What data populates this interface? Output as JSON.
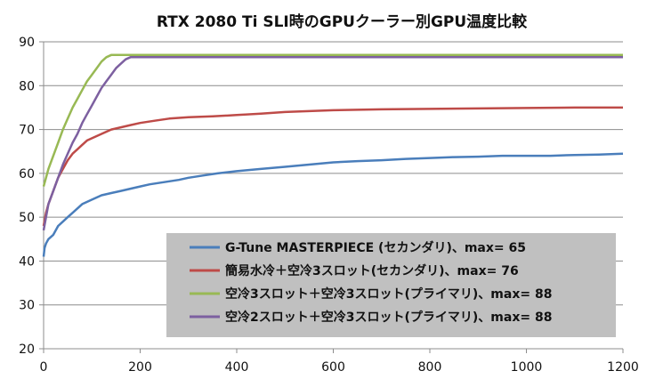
{
  "chart_data": {
    "type": "line",
    "title": "RTX 2080 Ti SLI時のGPUクーラー別GPU温度比較",
    "xlabel": "",
    "ylabel": "",
    "xlim": [
      0,
      1200
    ],
    "ylim": [
      20,
      90
    ],
    "x_ticks": [
      "0",
      "200",
      "400",
      "600",
      "800",
      "1000",
      "1200"
    ],
    "y_ticks": [
      "20",
      "30",
      "40",
      "50",
      "60",
      "70",
      "80",
      "90"
    ],
    "grid": "horizontal",
    "legend_position": "bottom-right",
    "series": [
      {
        "name": "G-Tune MASTERPIECE (セカンダリ)、max= 65",
        "color": "#4a7ebb",
        "points": [
          [
            0,
            41
          ],
          [
            2,
            43
          ],
          [
            5,
            44
          ],
          [
            10,
            45
          ],
          [
            20,
            46
          ],
          [
            30,
            48
          ],
          [
            40,
            49
          ],
          [
            50,
            50
          ],
          [
            60,
            51
          ],
          [
            70,
            52
          ],
          [
            80,
            53
          ],
          [
            100,
            54
          ],
          [
            120,
            55
          ],
          [
            140,
            55.5
          ],
          [
            160,
            56
          ],
          [
            180,
            56.5
          ],
          [
            200,
            57
          ],
          [
            220,
            57.5
          ],
          [
            250,
            58
          ],
          [
            280,
            58.5
          ],
          [
            300,
            59
          ],
          [
            330,
            59.5
          ],
          [
            360,
            60
          ],
          [
            400,
            60.5
          ],
          [
            450,
            61
          ],
          [
            500,
            61.5
          ],
          [
            550,
            62
          ],
          [
            600,
            62.5
          ],
          [
            650,
            62.8
          ],
          [
            700,
            63
          ],
          [
            750,
            63.3
          ],
          [
            800,
            63.5
          ],
          [
            850,
            63.7
          ],
          [
            900,
            63.8
          ],
          [
            950,
            64
          ],
          [
            1000,
            64
          ],
          [
            1050,
            64
          ],
          [
            1100,
            64.2
          ],
          [
            1150,
            64.3
          ],
          [
            1200,
            64.5
          ]
        ],
        "max": 65
      },
      {
        "name": "簡易水冷＋空冷3スロット(セカンダリ)、max= 76",
        "color": "#be4b48",
        "points": [
          [
            0,
            48
          ],
          [
            5,
            51
          ],
          [
            10,
            53
          ],
          [
            20,
            56
          ],
          [
            30,
            59
          ],
          [
            40,
            61
          ],
          [
            50,
            63
          ],
          [
            60,
            64.5
          ],
          [
            70,
            65.5
          ],
          [
            80,
            66.5
          ],
          [
            90,
            67.5
          ],
          [
            100,
            68
          ],
          [
            120,
            69
          ],
          [
            140,
            70
          ],
          [
            160,
            70.5
          ],
          [
            180,
            71
          ],
          [
            200,
            71.5
          ],
          [
            230,
            72
          ],
          [
            260,
            72.5
          ],
          [
            300,
            72.8
          ],
          [
            350,
            73
          ],
          [
            400,
            73.3
          ],
          [
            450,
            73.6
          ],
          [
            500,
            74
          ],
          [
            550,
            74.2
          ],
          [
            600,
            74.4
          ],
          [
            700,
            74.6
          ],
          [
            800,
            74.7
          ],
          [
            900,
            74.8
          ],
          [
            1000,
            74.9
          ],
          [
            1100,
            75
          ],
          [
            1200,
            75
          ]
        ],
        "max": 76
      },
      {
        "name": "空冷3スロット＋空冷3スロット(プライマリ)、max= 88",
        "color": "#98b954",
        "points": [
          [
            0,
            57
          ],
          [
            5,
            59
          ],
          [
            10,
            61
          ],
          [
            20,
            64
          ],
          [
            30,
            67
          ],
          [
            40,
            70
          ],
          [
            50,
            72.5
          ],
          [
            60,
            75
          ],
          [
            70,
            77
          ],
          [
            80,
            79
          ],
          [
            90,
            81
          ],
          [
            100,
            82.5
          ],
          [
            110,
            84
          ],
          [
            120,
            85.5
          ],
          [
            130,
            86.5
          ],
          [
            140,
            87
          ],
          [
            160,
            87
          ],
          [
            200,
            87
          ],
          [
            300,
            87
          ],
          [
            400,
            87
          ],
          [
            500,
            87
          ],
          [
            600,
            87
          ],
          [
            700,
            87
          ],
          [
            800,
            87
          ],
          [
            900,
            87
          ],
          [
            1000,
            87
          ],
          [
            1100,
            87
          ],
          [
            1200,
            87
          ]
        ],
        "max": 88
      },
      {
        "name": "空冷2スロット＋空冷3スロット(プライマリ)、max= 88",
        "color": "#7d60a0",
        "points": [
          [
            0,
            47
          ],
          [
            5,
            50
          ],
          [
            10,
            53
          ],
          [
            20,
            56
          ],
          [
            30,
            59
          ],
          [
            40,
            62
          ],
          [
            50,
            64.5
          ],
          [
            60,
            67
          ],
          [
            70,
            69
          ],
          [
            80,
            71.5
          ],
          [
            90,
            73.5
          ],
          [
            100,
            75.5
          ],
          [
            110,
            77.5
          ],
          [
            120,
            79.5
          ],
          [
            130,
            81
          ],
          [
            140,
            82.5
          ],
          [
            150,
            84
          ],
          [
            160,
            85
          ],
          [
            170,
            86
          ],
          [
            180,
            86.5
          ],
          [
            200,
            86.5
          ],
          [
            300,
            86.5
          ],
          [
            400,
            86.5
          ],
          [
            500,
            86.5
          ],
          [
            600,
            86.5
          ],
          [
            700,
            86.5
          ],
          [
            800,
            86.5
          ],
          [
            900,
            86.5
          ],
          [
            1000,
            86.5
          ],
          [
            1100,
            86.5
          ],
          [
            1200,
            86.5
          ]
        ],
        "max": 88
      }
    ]
  }
}
